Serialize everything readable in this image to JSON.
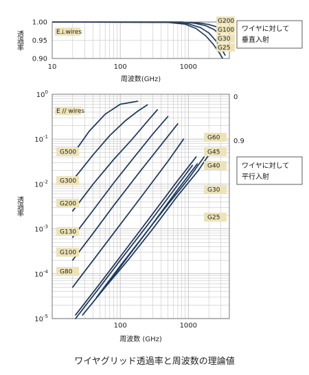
{
  "caption": "ワイヤグリッド透過率と周波数の理論値",
  "colors": {
    "line": "#1f3a5f",
    "tag_fill": "#ede3b8",
    "grid": "#b9b9b9",
    "axis": "#555555"
  },
  "chart_data": [
    {
      "type": "line",
      "id": "perpendicular",
      "xscale": "log",
      "xlim": [
        10,
        4000
      ],
      "ylim": [
        0.9,
        1.0
      ],
      "xticks": [
        "10",
        "100",
        "1000"
      ],
      "yticks": [
        "0.90",
        "0.95",
        "1.00"
      ],
      "xlabel": "周波数(GHz)",
      "ylabel": "透過率",
      "polarization_label": "E⊥wires",
      "note": [
        "ワイヤに対して",
        "垂直入射"
      ],
      "series": [
        {
          "name": "G200",
          "x": [
            10,
            500,
            1000,
            1500,
            2000,
            2500,
            3000,
            3500
          ],
          "y": [
            1.0,
            1.0,
            0.999,
            0.997,
            0.993,
            0.988,
            0.981,
            0.973
          ]
        },
        {
          "name": "G100",
          "x": [
            10,
            800,
            1200,
            1800,
            2400,
            3000,
            3500
          ],
          "y": [
            1.0,
            1.0,
            0.997,
            0.99,
            0.979,
            0.963,
            0.949
          ]
        },
        {
          "name": "G30",
          "x": [
            10,
            600,
            1000,
            1500,
            2000,
            2500,
            3000,
            3500
          ],
          "y": [
            1.0,
            0.999,
            0.995,
            0.985,
            0.97,
            0.95,
            0.93,
            0.908
          ]
        },
        {
          "name": "G25",
          "x": [
            10,
            500,
            900,
            1300,
            1800,
            2300,
            2800,
            3200
          ],
          "y": [
            1.0,
            0.999,
            0.994,
            0.982,
            0.962,
            0.94,
            0.918,
            0.9
          ]
        }
      ]
    },
    {
      "type": "line",
      "id": "parallel",
      "xscale": "log",
      "yscale": "log",
      "xlim": [
        10,
        4000
      ],
      "ylim": [
        1e-05,
        1
      ],
      "xticks": [
        "100",
        "1000"
      ],
      "yticks": [
        {
          "base": "10",
          "exp": "0"
        },
        {
          "base": "10",
          "exp": "-1"
        },
        {
          "base": "10",
          "exp": "-2"
        },
        {
          "base": "10",
          "exp": "-3"
        },
        {
          "base": "10",
          "exp": "-4"
        },
        {
          "base": "10",
          "exp": "-5"
        }
      ],
      "right_ticks": [
        "0",
        "0.9"
      ],
      "xlabel": "周波数 (GHz)",
      "ylabel": "透過率",
      "polarization_label": "E // wires",
      "note": [
        "ワイヤに対して",
        "平行入射"
      ],
      "series": [
        {
          "name": "G500",
          "x": [
            21,
            35,
            60,
            100,
            180
          ],
          "y": [
            0.05,
            0.15,
            0.36,
            0.6,
            0.7
          ]
        },
        {
          "name": "G300",
          "x": [
            20,
            40,
            70,
            120,
            180,
            250
          ],
          "y": [
            0.012,
            0.045,
            0.12,
            0.26,
            0.42,
            0.58
          ]
        },
        {
          "name": "G200",
          "x": [
            20,
            40,
            80,
            150,
            250,
            350
          ],
          "y": [
            0.0025,
            0.01,
            0.035,
            0.1,
            0.25,
            0.45
          ]
        },
        {
          "name": "G130",
          "x": [
            20,
            40,
            80,
            150,
            300,
            500
          ],
          "y": [
            0.00065,
            0.0026,
            0.0105,
            0.035,
            0.13,
            0.32
          ]
        },
        {
          "name": "G100",
          "x": [
            20,
            40,
            80,
            200,
            400,
            700
          ],
          "y": [
            0.0002,
            0.0008,
            0.0033,
            0.02,
            0.075,
            0.22
          ]
        },
        {
          "name": "G80",
          "x": [
            20,
            40,
            80,
            200,
            500,
            850
          ],
          "y": [
            5e-05,
            0.0002,
            0.0008,
            0.005,
            0.032,
            0.1
          ]
        },
        {
          "name": "G60",
          "x": [
            22,
            50,
            100,
            250,
            600,
            1150
          ],
          "y": [
            1e-05,
            5e-05,
            0.0002,
            0.0012,
            0.007,
            0.026
          ]
        },
        {
          "name": "G45",
          "x": [
            22,
            50,
            100,
            250,
            700,
            1300
          ],
          "y": [
            1.2e-05,
            6e-05,
            0.00024,
            0.0015,
            0.012,
            0.04
          ]
        },
        {
          "name": "G40",
          "x": [
            28,
            60,
            130,
            300,
            700,
            1350
          ],
          "y": [
            1.2e-05,
            5e-05,
            0.00024,
            0.0013,
            0.0075,
            0.028
          ]
        },
        {
          "name": "G30",
          "x": [
            45,
            100,
            220,
            500,
            1000,
            1700
          ],
          "y": [
            3e-05,
            0.00015,
            0.0007,
            0.0035,
            0.013,
            0.04
          ]
        },
        {
          "name": "G25",
          "x": [
            60,
            130,
            300,
            700,
            1400,
            2100
          ],
          "y": [
            5e-05,
            0.0002,
            0.001,
            0.0055,
            0.02,
            0.05
          ]
        }
      ]
    }
  ]
}
